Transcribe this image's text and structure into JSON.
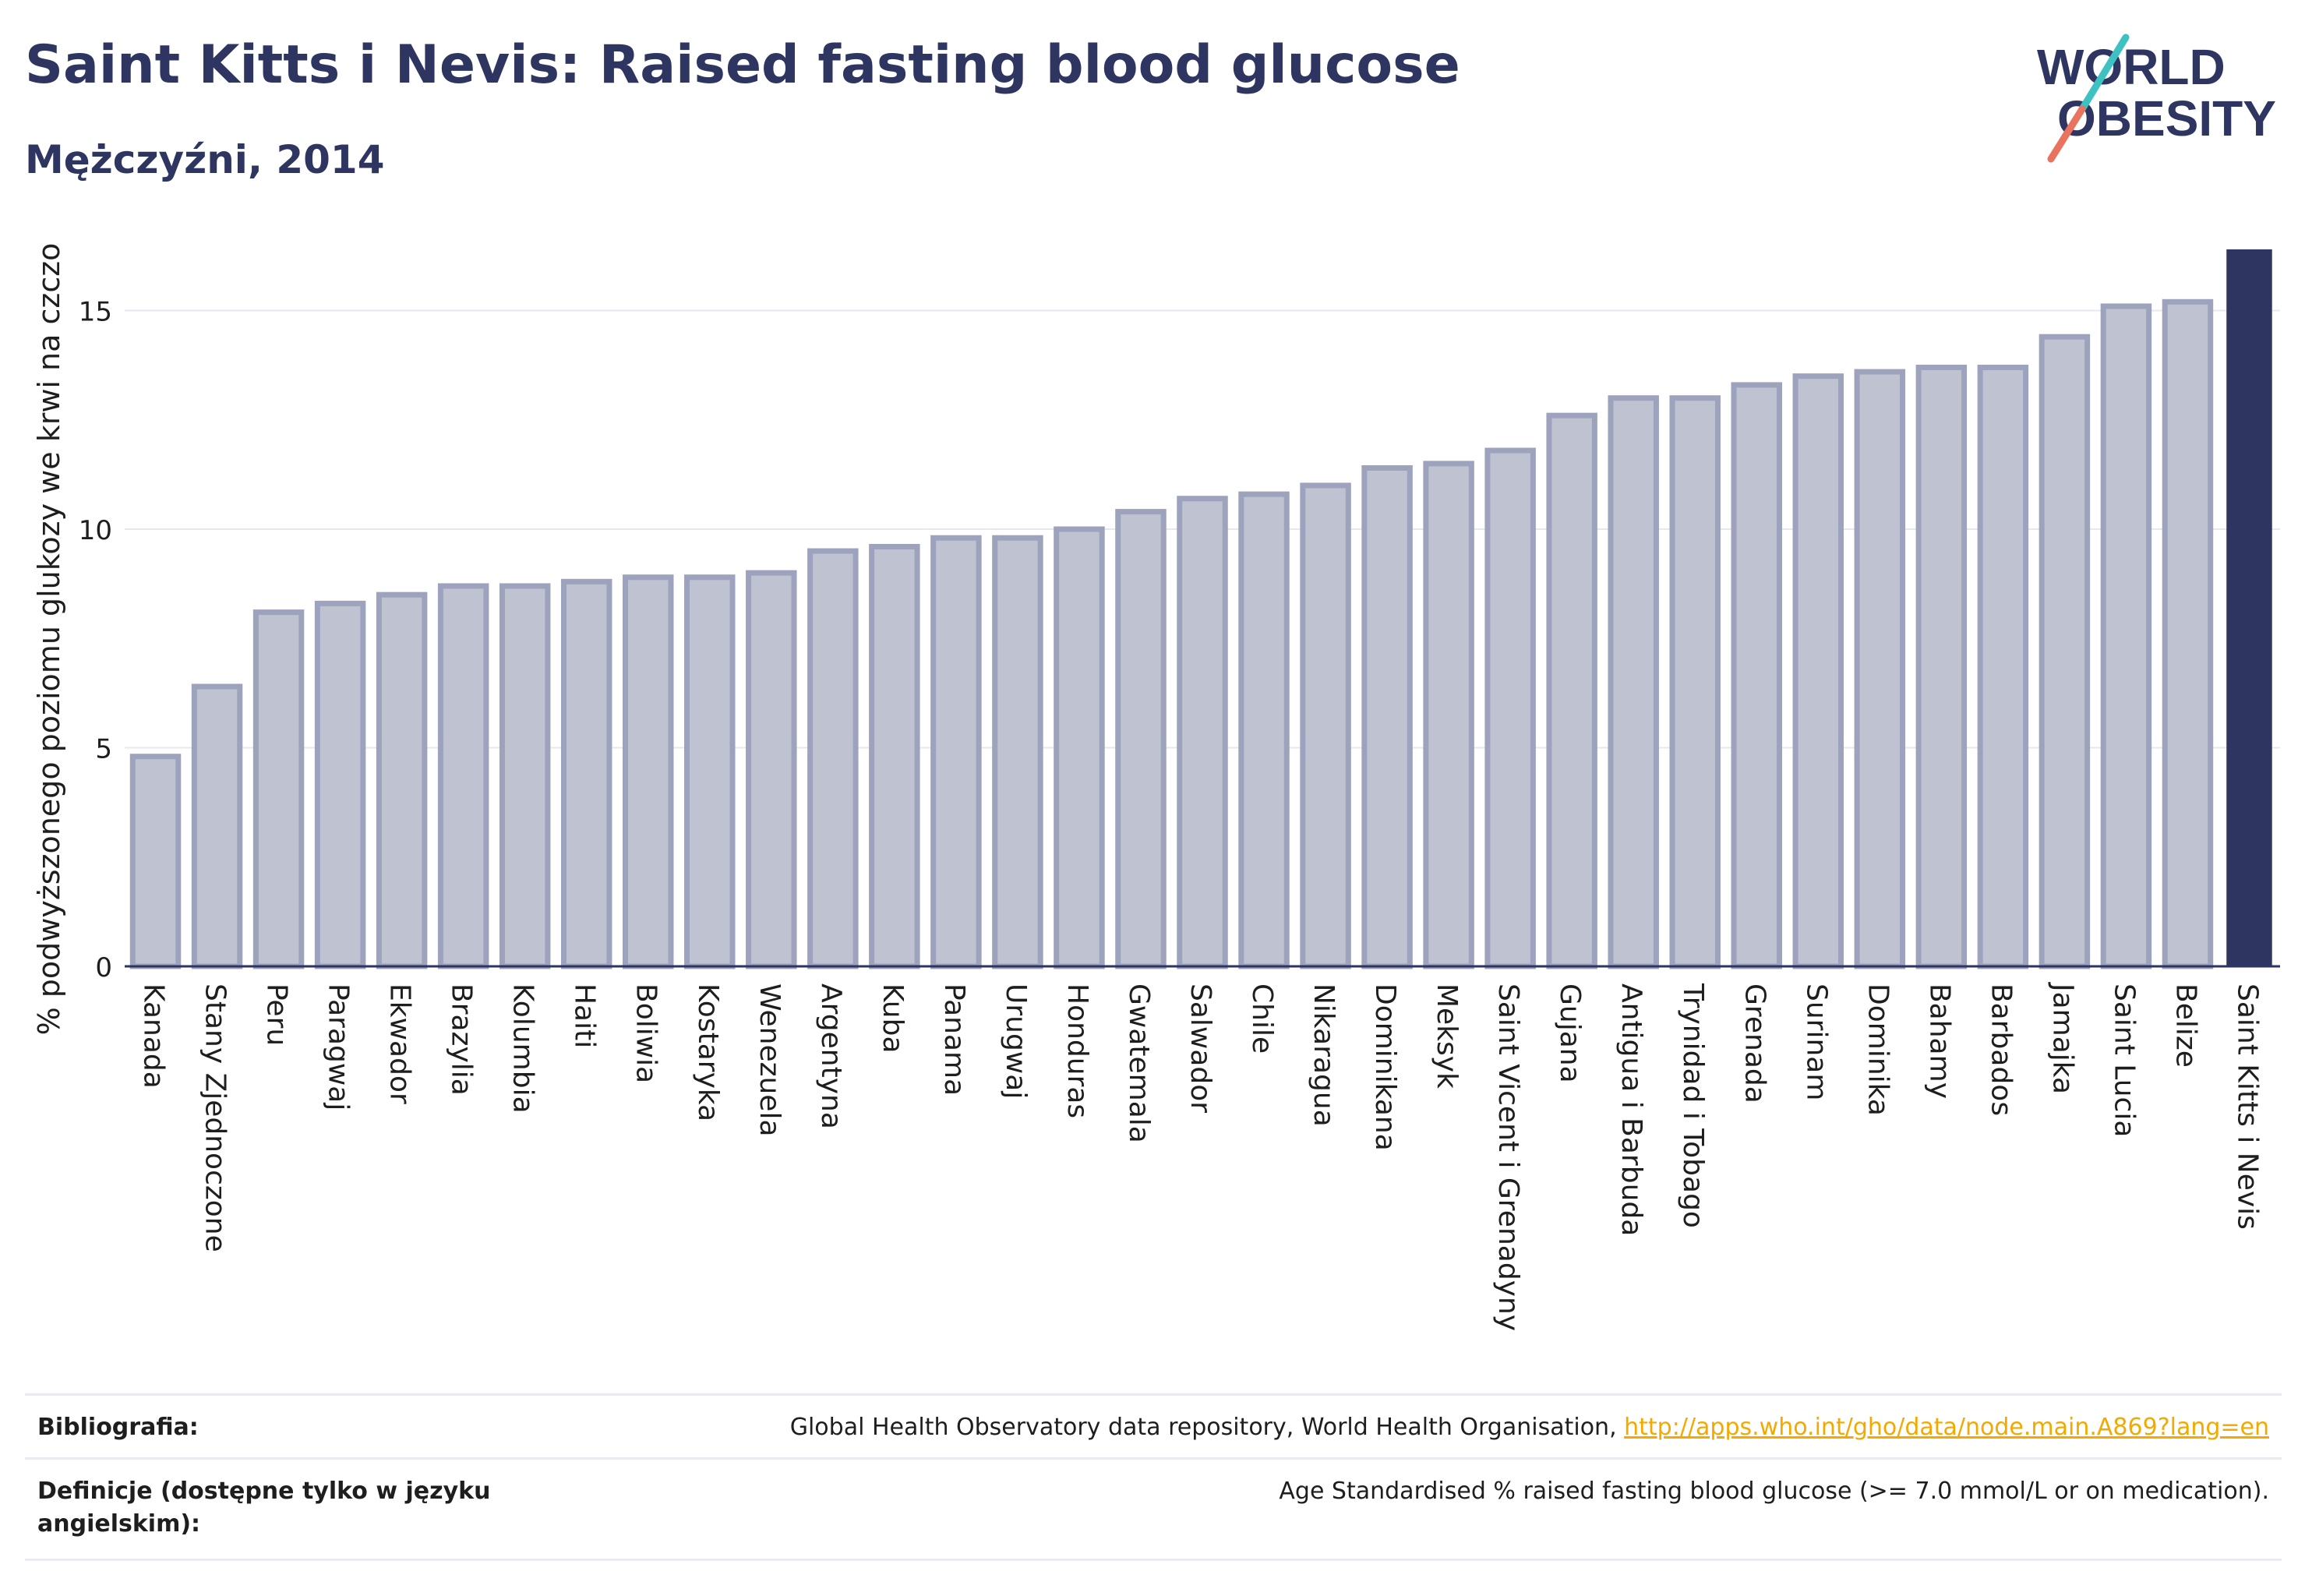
{
  "header": {
    "title": "Saint Kitts i Nevis: Raised fasting blood glucose",
    "subtitle": "Mężczyźni, 2014"
  },
  "logo": {
    "line1": "WORLD",
    "line2": "OBESITY"
  },
  "colors": {
    "bar": "#bfc2d0",
    "bar_stroke": "#9da2bd",
    "highlight": "#2d3560",
    "grid": "#e6e8ef",
    "axis": "#2d3560"
  },
  "chart_data": {
    "type": "bar",
    "title": "Saint Kitts i Nevis: Raised fasting blood glucose",
    "subtitle": "Mężczyźni, 2014",
    "ylabel": "% podwyższonego poziomu glukozy we krwi na czczo",
    "xlabel": "",
    "ylim": [
      0,
      16.4
    ],
    "yticks": [
      0,
      5,
      10,
      15
    ],
    "grid": true,
    "highlight": "Saint Kitts i Nevis",
    "categories": [
      "Kanada",
      "Stany Zjednoczone",
      "Peru",
      "Paragwaj",
      "Ekwador",
      "Brazylia",
      "Kolumbia",
      "Haiti",
      "Boliwia",
      "Kostaryka",
      "Wenezuela",
      "Argentyna",
      "Kuba",
      "Panama",
      "Urugwaj",
      "Honduras",
      "Gwatemala",
      "Salwador",
      "Chile",
      "Nikaragua",
      "Dominikana",
      "Meksyk",
      "Saint Vicent i Grenadyny",
      "Gujana",
      "Antigua i Barbuda",
      "Trynidad i Tobago",
      "Grenada",
      "Surinam",
      "Dominika",
      "Bahamy",
      "Barbados",
      "Jamajka",
      "Saint Lucia",
      "Belize",
      "Saint Kitts i Nevis"
    ],
    "values": [
      4.8,
      6.4,
      8.1,
      8.3,
      8.5,
      8.7,
      8.7,
      8.8,
      8.9,
      8.9,
      9.0,
      9.5,
      9.6,
      9.8,
      9.8,
      10.0,
      10.4,
      10.7,
      10.8,
      11.0,
      11.4,
      11.5,
      11.8,
      12.6,
      13.0,
      13.0,
      13.3,
      13.5,
      13.6,
      13.7,
      13.7,
      14.4,
      15.1,
      15.2,
      16.4
    ]
  },
  "footer": {
    "bibliography_label": "Bibliografia:",
    "bibliography_text": "Global Health Observatory data repository, World Health Organisation, ",
    "bibliography_link": "http://apps.who.int/gho/data/node.main.A869?lang=en",
    "definitions_label": "Definicje (dostępne tylko w języku angielskim):",
    "definitions_text": "Age Standardised % raised fasting blood glucose (>= 7.0 mmol/L or on medication)."
  }
}
